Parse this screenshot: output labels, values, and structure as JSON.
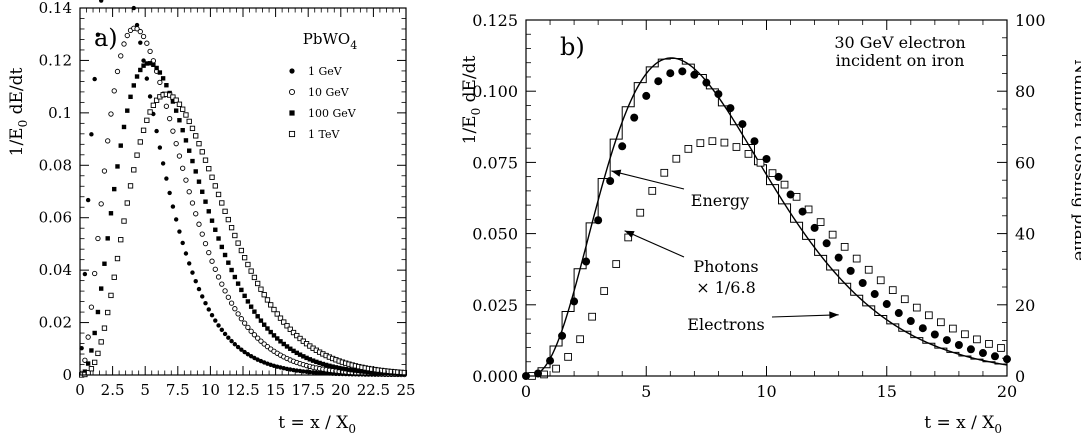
{
  "chart_data": [
    {
      "panel_label": "a)",
      "type": "scatter",
      "annotation": "PbWO",
      "annotation_sub": "4",
      "xlabel_main": "t = x / X",
      "xlabel_sub": "0",
      "ylabel_pre": "1/E",
      "ylabel_sub": "0",
      "ylabel_post": " dE/dt",
      "xlim": [
        0,
        25
      ],
      "ylim": [
        0,
        0.14
      ],
      "xticks": [
        0,
        2.5,
        5,
        7.5,
        10,
        12.5,
        15,
        17.5,
        20,
        22.5,
        25
      ],
      "xtick_labels": [
        "0",
        "2.5",
        "5",
        "7.5",
        "10",
        "12.5",
        "15",
        "17.5",
        "20",
        "22.5",
        "25"
      ],
      "yticks": [
        0,
        0.02,
        0.04,
        0.06,
        0.08,
        0.1,
        0.12,
        0.14
      ],
      "ytick_labels": [
        "0",
        "0.02",
        "0.04",
        "0.06",
        "0.08",
        "0.1",
        "0.12",
        "0.14"
      ],
      "legend_position": "top-right",
      "series": [
        {
          "name": "1 GeV",
          "marker": "filled-circle",
          "shape_a": 2.32,
          "scale_b": 0.5,
          "x_start": 0.125,
          "x_end": 25,
          "x_step": 0.25
        },
        {
          "name": "10 GeV",
          "marker": "open-circle",
          "shape_a": 3.1,
          "scale_b": 0.5,
          "x_start": 0.125,
          "x_end": 25,
          "x_step": 0.25
        },
        {
          "name": "100 GeV",
          "marker": "filled-square",
          "shape_a": 3.64,
          "scale_b": 0.5,
          "x_start": 0.125,
          "x_end": 25,
          "x_step": 0.25
        },
        {
          "name": "1 TeV",
          "marker": "open-square",
          "shape_a": 4.3,
          "scale_b": 0.5,
          "x_start": 0.125,
          "x_end": 25,
          "x_step": 0.25
        }
      ]
    },
    {
      "panel_label": "b)",
      "type": "scatter",
      "annotation_line1": "30 GeV electron",
      "annotation_line2": "incident on iron",
      "xlabel_main": "t = x / X",
      "xlabel_sub": "0",
      "ylabel_pre": "1/E",
      "ylabel_sub": "0",
      "ylabel_post": " dE/dt",
      "y2label": "Number crossing plane",
      "xlim": [
        0,
        20
      ],
      "ylim": [
        0,
        0.125
      ],
      "y2lim": [
        0,
        100
      ],
      "xticks": [
        0,
        5,
        10,
        15,
        20
      ],
      "xtick_labels": [
        "0",
        "5",
        "10",
        "15",
        "20"
      ],
      "yticks": [
        0,
        0.025,
        0.05,
        0.075,
        0.1,
        0.125
      ],
      "ytick_labels": [
        "0.000",
        "0.025",
        "0.050",
        "0.075",
        "0.100",
        "0.125"
      ],
      "y2ticks": [
        0,
        20,
        40,
        60,
        80,
        100
      ],
      "y2tick_labels": [
        "0",
        "20",
        "40",
        "60",
        "80",
        "100"
      ],
      "energy_curve": {
        "shape_a": 4.02,
        "scale_b": 0.5,
        "x_start": 0,
        "x_end": 20
      },
      "energy_histogram": {
        "shape_a": 4.02,
        "scale_b": 0.5,
        "bin_width": 0.5,
        "x_start": 0,
        "x_end": 20
      },
      "electrons": {
        "marker": "filled-circle",
        "shape_a": 3.95,
        "scale_b": 0.46,
        "y_scale": 1.03,
        "x_start": 0,
        "x_end": 20,
        "x_step": 0.5
      },
      "photons": {
        "marker": "open-square",
        "shape_a": 4.5,
        "scale_b": 0.45,
        "y_scale": 0.88,
        "x_start": 0.25,
        "x_end": 20,
        "x_step": 0.5
      },
      "annotations": [
        {
          "text_lines": [
            "Energy"
          ],
          "arrow_to": [
            3.55,
            0.072
          ]
        },
        {
          "text_lines": [
            "Photons",
            "× 1/6.8"
          ],
          "arrow_to": [
            4.1,
            0.051
          ]
        },
        {
          "text_lines": [
            "Electrons"
          ],
          "arrow_to": [
            13.0,
            0.0215
          ]
        }
      ]
    }
  ]
}
